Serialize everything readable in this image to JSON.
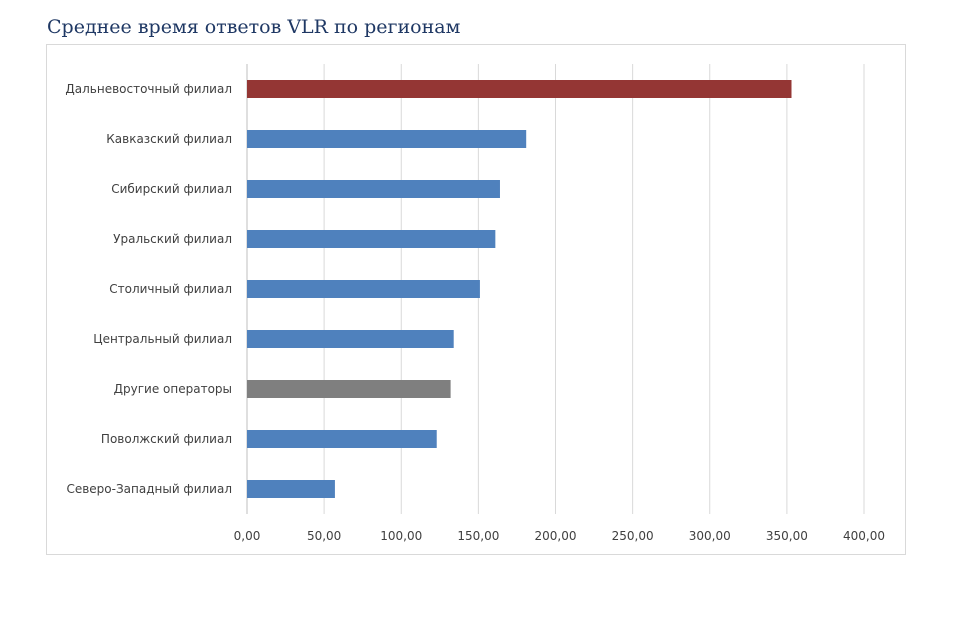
{
  "title": "Среднее время ответов VLR по регионам",
  "chart_data": {
    "type": "bar",
    "orientation": "horizontal",
    "title": "Среднее время ответов VLR по регионам",
    "xlabel": "",
    "ylabel": "",
    "xlim": [
      0,
      400
    ],
    "grid": true,
    "legend": "none",
    "categories": [
      "Дальневосточный филиал",
      "Кавказский филиал",
      "Сибирский филиал",
      "Уральский филиал",
      "Столичный филиал",
      "Центральный филиал",
      "Другие операторы",
      "Поволжский филиал",
      "Северо-Западный филиал"
    ],
    "values": [
      353,
      181,
      164,
      161,
      151,
      134,
      132,
      123,
      57
    ],
    "bar_colors": [
      "#943634",
      "#4f81bd",
      "#4f81bd",
      "#4f81bd",
      "#4f81bd",
      "#4f81bd",
      "#7f7f7f",
      "#4f81bd",
      "#4f81bd"
    ],
    "x_ticks": [
      0,
      50,
      100,
      150,
      200,
      250,
      300,
      350,
      400
    ],
    "x_tick_labels": [
      "0,00",
      "50,00",
      "100,00",
      "150,00",
      "200,00",
      "250,00",
      "300,00",
      "350,00",
      "400,00"
    ]
  }
}
